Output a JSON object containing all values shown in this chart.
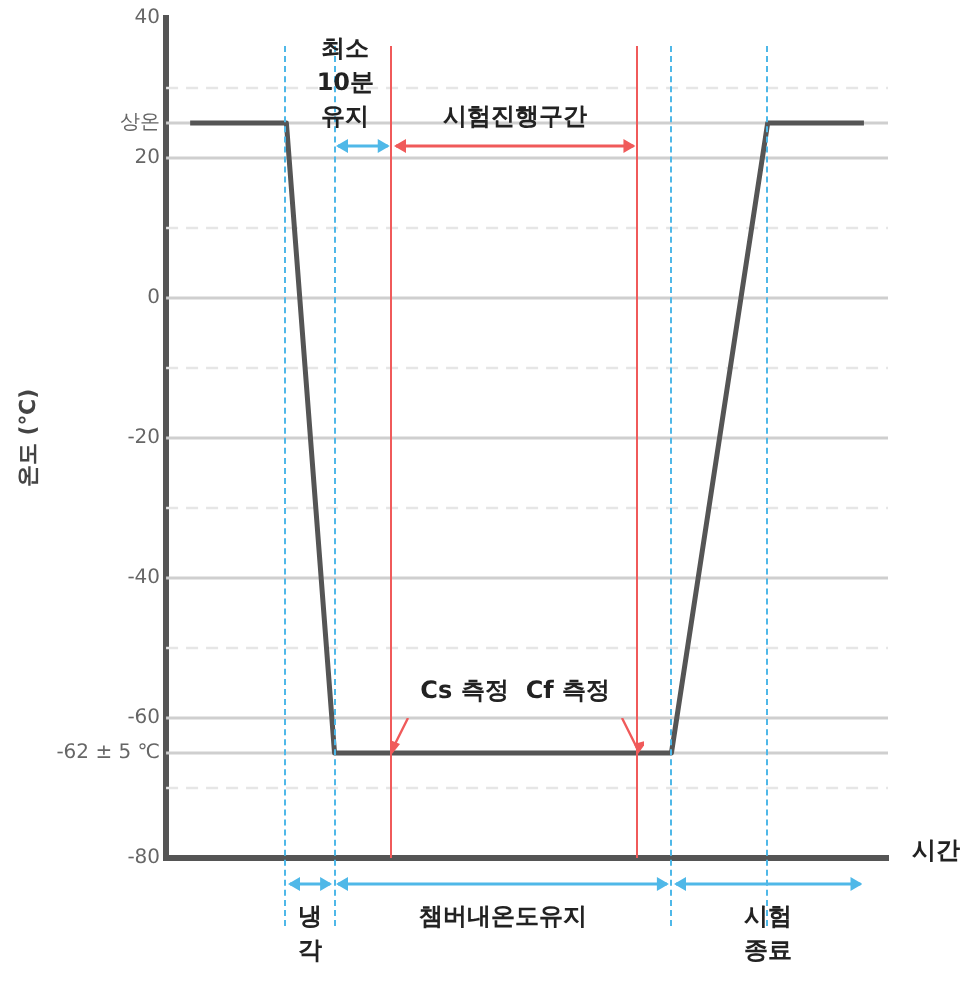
{
  "chart_data": {
    "type": "line",
    "xlabel": "시간",
    "ylabel": "온도 (℃)",
    "categories": [
      null,
      null,
      null,
      null,
      null,
      null,
      null,
      null,
      null,
      null,
      null,
      null,
      null,
      null,
      null
    ],
    "series": [
      {
        "color": "#555555",
        "values": [
          25,
          null,
          25,
          -65,
          null,
          null,
          null,
          null,
          null,
          null,
          -65,
          null,
          25,
          null,
          25
        ]
      }
    ],
    "ylim": [
      -80,
      40
    ],
    "yticks": [
      40,
      {
        "value": 30,
        "label": null
      },
      {
        "value": 25,
        "label": "상온"
      },
      20,
      {
        "value": 10,
        "label": null
      },
      0,
      {
        "value": -10,
        "label": null
      },
      -20,
      {
        "value": -30,
        "label": null
      },
      -40,
      {
        "value": -50,
        "label": null
      },
      -60,
      {
        "value": -65,
        "label": "-62 ± 5 ℃"
      },
      {
        "value": -70,
        "label": null
      },
      -80
    ],
    "tick_labels": "y",
    "grid": true,
    "legend": false,
    "marker": "none",
    "line_style": "solid",
    "annotations": [
      "최소 10분 유지",
      "시험진행구간",
      "Cs 측정",
      "Cf 측정",
      "냉각",
      "챔버내온도유지",
      "시험 종료"
    ]
  }
}
